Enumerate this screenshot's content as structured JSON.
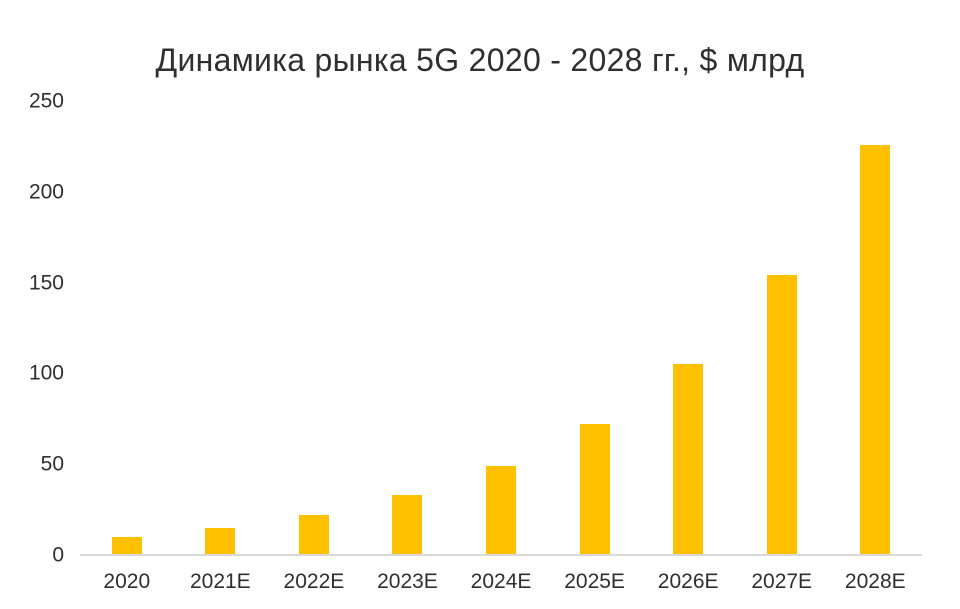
{
  "chart_data": {
    "type": "bar",
    "title": "Динамика рынка 5G 2020 - 2028 гг., $ млрд",
    "categories": [
      "2020",
      "2021E",
      "2022E",
      "2023E",
      "2024E",
      "2025E",
      "2026E",
      "2027E",
      "2028E"
    ],
    "values": [
      10,
      15,
      22,
      33,
      49,
      72,
      105,
      154,
      226
    ],
    "xlabel": "",
    "ylabel": "",
    "ylim": [
      0,
      250
    ],
    "yticks": [
      0,
      50,
      100,
      150,
      200,
      250
    ],
    "grid": "off",
    "legend": "none",
    "bar_color": "#FFC000",
    "axis_line_color": "#D9D9D9",
    "text_color": "#2F2F2F",
    "background_color": "#FFFFFF"
  }
}
